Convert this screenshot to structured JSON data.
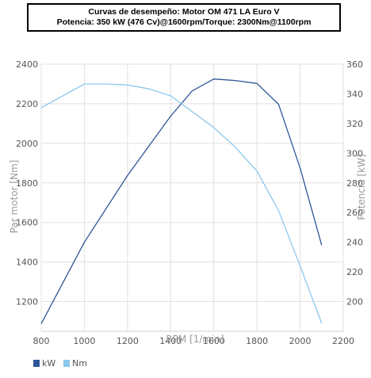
{
  "chart_data": {
    "type": "line",
    "title_line1": "Curvas de desempeño: Motor OM 471 LA Euro V",
    "title_line2": "Potencia: 350 kW (476 Cv)@1600rpm/Torque: 2300Nm@1100rpm",
    "xlabel": "RPM [1/min]",
    "ylabel_left": "Par motor [Nm]",
    "ylabel_right": "Potencia [kW]",
    "xlim": [
      800,
      2200
    ],
    "xticks": [
      800,
      1000,
      1200,
      1400,
      1600,
      1800,
      2000,
      2200
    ],
    "ylim_left": [
      1050,
      2400
    ],
    "yticks_left": [
      1200,
      1400,
      1600,
      1800,
      2000,
      2200,
      2400
    ],
    "ylim_right": [
      180,
      360
    ],
    "yticks_right": [
      200,
      220,
      240,
      260,
      280,
      300,
      320,
      340,
      360
    ],
    "grid": true,
    "legend_position": "bottom-left",
    "series": [
      {
        "name": "kW",
        "axis": "right",
        "color": "#2f5597",
        "x": [
          800,
          1000,
          1200,
          1400,
          1500,
          1600,
          1700,
          1800,
          1900,
          2000,
          2100
        ],
        "y": [
          185,
          240,
          285,
          325,
          342,
          350,
          349,
          347,
          333,
          290,
          238
        ]
      },
      {
        "name": "Nm",
        "axis": "left",
        "color": "#8cc8ee",
        "x": [
          800,
          1000,
          1100,
          1200,
          1300,
          1400,
          1500,
          1600,
          1700,
          1800,
          1900,
          2000,
          2100
        ],
        "y": [
          2180,
          2300,
          2300,
          2295,
          2275,
          2240,
          2160,
          2080,
          1980,
          1860,
          1660,
          1380,
          1090
        ]
      }
    ]
  }
}
